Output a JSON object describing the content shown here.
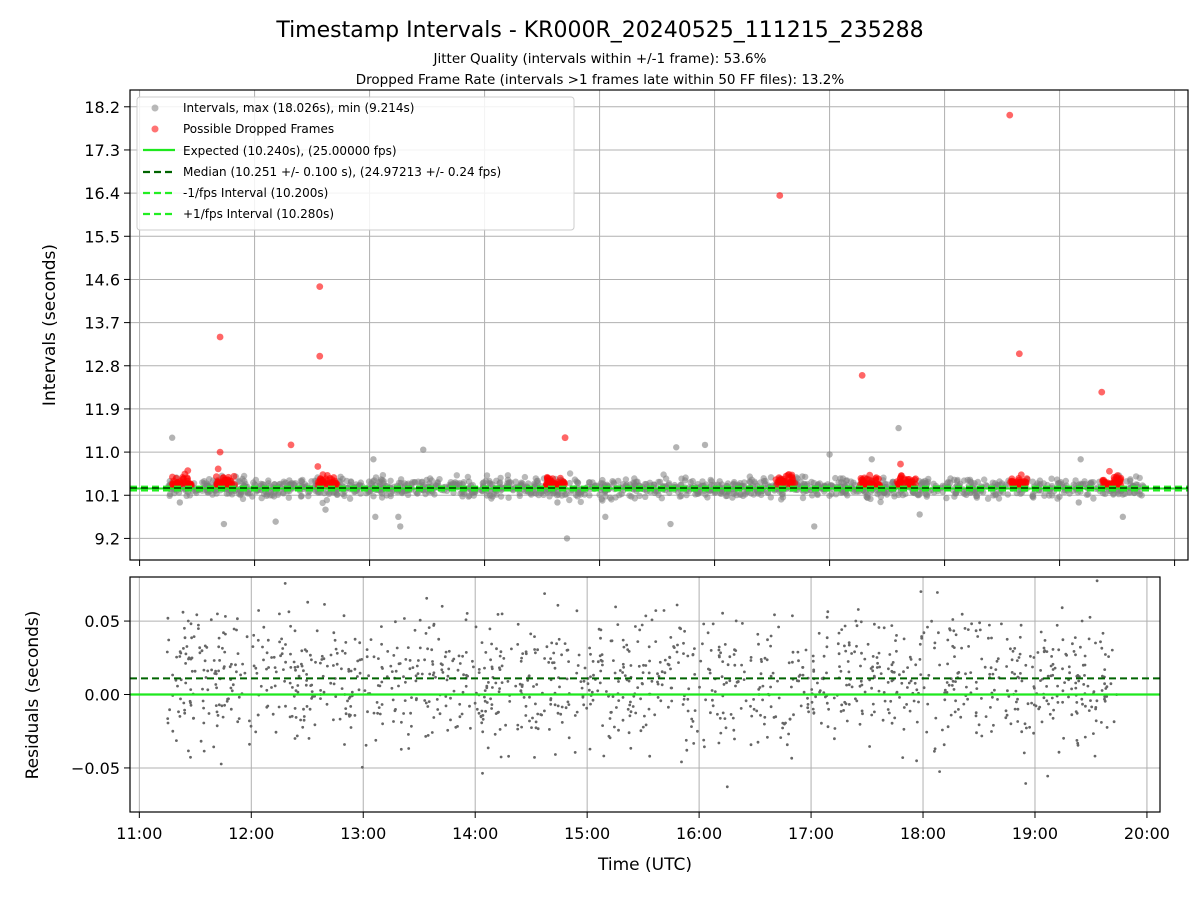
{
  "title": "Timestamp Intervals - KR000R_20240525_111215_235288",
  "subtitle_lines": [
    "Jitter Quality (intervals within +/-1 frame): 53.6%",
    "Dropped Frame Rate (intervals >1 frames late within 50 FF files): 13.2%"
  ],
  "colors": {
    "intervals": "#808080",
    "dropped": "#ff0000",
    "expected": "#1ee81e",
    "median": "#006400",
    "fps_band": "#22ee22",
    "residual_points": "#666666",
    "grid": "#b0b0b0"
  },
  "chart_data": [
    {
      "type": "scatter",
      "ylabel": "Intervals (seconds)",
      "xlim": [
        "10:55",
        "20:07"
      ],
      "ylim": [
        8.75,
        18.55
      ],
      "yticks": [
        "9.2",
        "10.1",
        "11.0",
        "11.9",
        "12.8",
        "13.7",
        "14.6",
        "15.5",
        "16.4",
        "17.3",
        "18.2"
      ],
      "ytick_values": [
        9.2,
        10.1,
        11.0,
        11.9,
        12.8,
        13.7,
        14.6,
        15.5,
        16.4,
        17.3,
        18.2
      ],
      "grid": true,
      "legend_position": "top-left",
      "legend": [
        {
          "label": "Intervals, max (18.026s), min (9.214s)",
          "marker": "gray-dot"
        },
        {
          "label": "Possible Dropped Frames",
          "marker": "red-dot"
        },
        {
          "label": "Expected (10.240s), (25.00000 fps)",
          "marker": "green-line"
        },
        {
          "label": "Median (10.251 +/- 0.100 s), (24.97213 +/- 0.24 fps)",
          "marker": "darkgreen-dash"
        },
        {
          "label": "-1/fps Interval (10.200s)",
          "marker": "green-dash"
        },
        {
          "label": "+1/fps Interval (10.280s)",
          "marker": "green-dash"
        }
      ],
      "lines": {
        "expected": 10.24,
        "median": 10.251,
        "minus_fps": 10.2,
        "plus_fps": 10.28
      },
      "series": [
        {
          "name": "Intervals, max (18.026s), min (9.214s)",
          "summary": {
            "x_range": [
              "11:15",
              "19:44"
            ],
            "typical_range": [
              9.9,
              10.6
            ],
            "max": 18.026,
            "min": 9.214
          },
          "points": [
            {
              "x": "11:17",
              "y": 11.3
            },
            {
              "x": "11:21",
              "y": 9.95
            },
            {
              "x": "11:44",
              "y": 9.5
            },
            {
              "x": "12:11",
              "y": 9.55
            },
            {
              "x": "12:37",
              "y": 9.8
            },
            {
              "x": "13:02",
              "y": 10.85
            },
            {
              "x": "13:03",
              "y": 9.65
            },
            {
              "x": "13:15",
              "y": 9.65
            },
            {
              "x": "13:16",
              "y": 9.45
            },
            {
              "x": "13:28",
              "y": 11.05
            },
            {
              "x": "14:38",
              "y": 9.95
            },
            {
              "x": "14:43",
              "y": 9.2
            },
            {
              "x": "15:03",
              "y": 9.65
            },
            {
              "x": "15:37",
              "y": 9.5
            },
            {
              "x": "15:40",
              "y": 11.1
            },
            {
              "x": "15:55",
              "y": 11.15
            },
            {
              "x": "16:52",
              "y": 9.45
            },
            {
              "x": "17:00",
              "y": 10.95
            },
            {
              "x": "17:22",
              "y": 10.85
            },
            {
              "x": "17:36",
              "y": 11.5
            },
            {
              "x": "17:47",
              "y": 9.7
            },
            {
              "x": "19:10",
              "y": 9.95
            },
            {
              "x": "19:11",
              "y": 10.85
            },
            {
              "x": "19:33",
              "y": 9.65
            }
          ]
        },
        {
          "name": "Possible Dropped Frames",
          "points": [
            {
              "x": "11:42",
              "y": 13.4
            },
            {
              "x": "11:42",
              "y": 11.0
            },
            {
              "x": "11:41",
              "y": 10.65
            },
            {
              "x": "12:19",
              "y": 11.15
            },
            {
              "x": "12:34",
              "y": 14.45
            },
            {
              "x": "12:34",
              "y": 13.0
            },
            {
              "x": "12:33",
              "y": 10.7
            },
            {
              "x": "14:42",
              "y": 11.3
            },
            {
              "x": "16:34",
              "y": 16.35
            },
            {
              "x": "17:17",
              "y": 12.6
            },
            {
              "x": "17:37",
              "y": 10.75
            },
            {
              "x": "18:34",
              "y": 18.026
            },
            {
              "x": "18:39",
              "y": 13.05
            },
            {
              "x": "19:22",
              "y": 12.25
            },
            {
              "x": "19:26",
              "y": 10.6
            }
          ],
          "clusters": [
            "11:22",
            "11:45",
            "12:38",
            "14:37",
            "16:37",
            "17:21",
            "17:40",
            "18:39",
            "19:27"
          ]
        }
      ]
    },
    {
      "type": "scatter",
      "xlabel": "Time (UTC)",
      "ylabel": "Residuals (seconds)",
      "xlim": [
        "10:55",
        "20:07"
      ],
      "ylim": [
        -0.08,
        0.08
      ],
      "xticks": [
        "11:00",
        "12:00",
        "13:00",
        "14:00",
        "15:00",
        "16:00",
        "17:00",
        "18:00",
        "19:00",
        "20:00"
      ],
      "yticks": [
        "0.05",
        "0.00",
        "−0.05"
      ],
      "ytick_values": [
        0.05,
        0.0,
        -0.05
      ],
      "grid": true,
      "lines": {
        "expected": 0.0,
        "median": 0.011
      },
      "series": [
        {
          "name": "",
          "summary": {
            "x_range": [
              "11:15",
              "19:44"
            ],
            "y_range": [
              -0.08,
              0.08
            ],
            "cluster_center": 0.01
          }
        }
      ]
    }
  ]
}
